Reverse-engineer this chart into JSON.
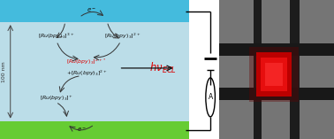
{
  "fig_width": 3.78,
  "fig_height": 1.57,
  "dpi": 100,
  "top_electrode_color": "#55CCEE",
  "bottom_electrode_color": "#66CC33",
  "gap_color": "#AADDEE",
  "nm_label": "100 nm",
  "red_color": "#DD0000",
  "arrow_color": "#333333",
  "photo_bg": "#7A7A7A"
}
